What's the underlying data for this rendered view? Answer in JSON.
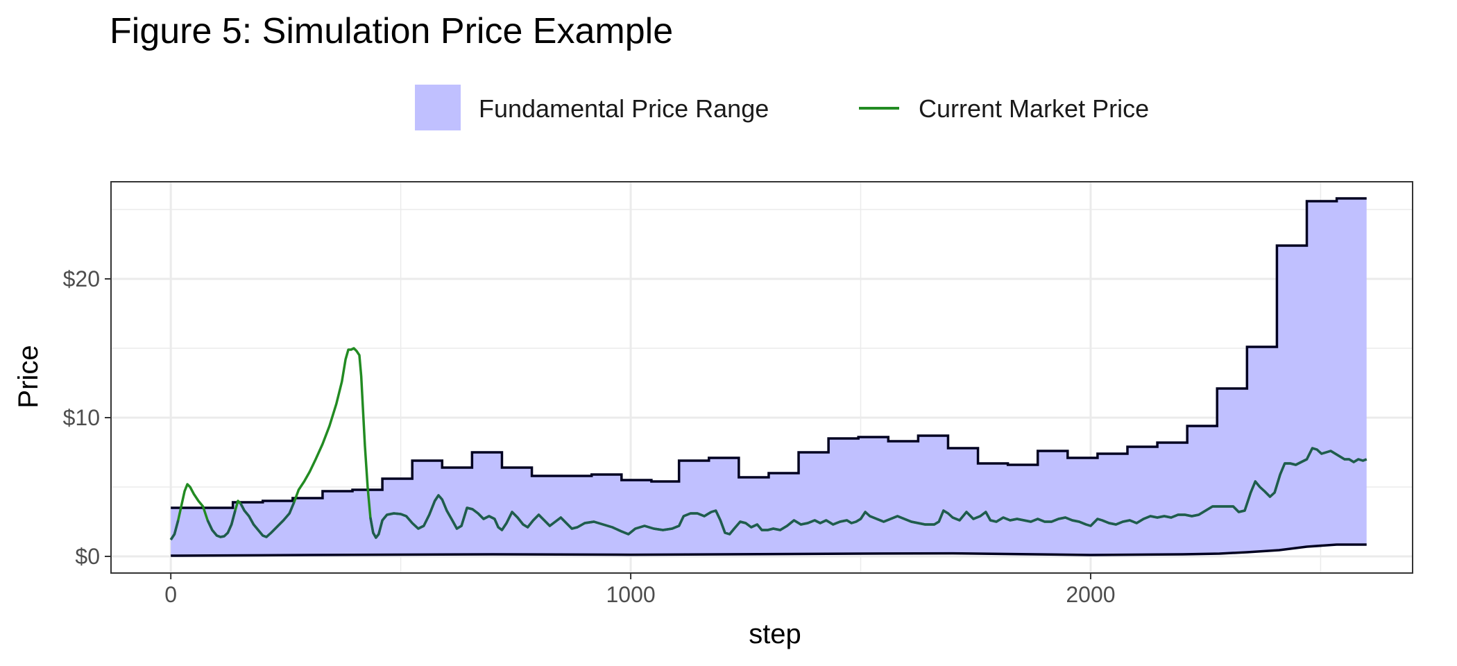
{
  "chart_data": {
    "type": "line",
    "title": "Figure 5: Simulation Price Example",
    "xlabel": "step",
    "ylabel": "Price",
    "xlim": [
      -130,
      2700
    ],
    "ylim": [
      -1.2,
      27
    ],
    "x_ticks": [
      {
        "value": 0,
        "label": "0"
      },
      {
        "value": 1000,
        "label": "1000"
      },
      {
        "value": 2000,
        "label": "2000"
      }
    ],
    "y_ticks": [
      {
        "value": 0,
        "label": "$0"
      },
      {
        "value": 10,
        "label": "$10"
      },
      {
        "value": 20,
        "label": "$20"
      }
    ],
    "x_minor": [
      500,
      1500,
      2500
    ],
    "y_minor": [
      5,
      15,
      25
    ],
    "grid": true,
    "legend": {
      "placement": "top",
      "entries": [
        {
          "label": "Fundamental Price Range",
          "kind": "fill"
        },
        {
          "label": "Current Market Price",
          "kind": "line"
        }
      ]
    },
    "colors": {
      "range_fill": "#c0c0ff",
      "range_edge": "#000020",
      "price_outside": "#228b22",
      "price_inside": "#1f5c4e",
      "grid": "#ebebeb",
      "panel_border": "#333333"
    },
    "fundamental_upper_steps": [
      [
        0,
        3.5
      ],
      [
        135,
        3.9
      ],
      [
        200,
        4.0
      ],
      [
        265,
        4.2
      ],
      [
        330,
        4.7
      ],
      [
        395,
        4.8
      ],
      [
        460,
        5.6
      ],
      [
        525,
        6.9
      ],
      [
        590,
        6.4
      ],
      [
        655,
        7.5
      ],
      [
        720,
        6.4
      ],
      [
        785,
        5.8
      ],
      [
        850,
        5.8
      ],
      [
        915,
        5.9
      ],
      [
        980,
        5.5
      ],
      [
        1045,
        5.4
      ],
      [
        1105,
        6.9
      ],
      [
        1170,
        7.1
      ],
      [
        1235,
        5.7
      ],
      [
        1300,
        6.0
      ],
      [
        1365,
        7.5
      ],
      [
        1430,
        8.5
      ],
      [
        1495,
        8.6
      ],
      [
        1560,
        8.3
      ],
      [
        1625,
        8.7
      ],
      [
        1690,
        7.8
      ],
      [
        1755,
        6.7
      ],
      [
        1820,
        6.6
      ],
      [
        1885,
        7.6
      ],
      [
        1950,
        7.1
      ],
      [
        2015,
        7.4
      ],
      [
        2080,
        7.9
      ],
      [
        2145,
        8.2
      ],
      [
        2210,
        9.4
      ],
      [
        2275,
        12.1
      ],
      [
        2340,
        15.1
      ],
      [
        2405,
        22.4
      ],
      [
        2470,
        25.6
      ],
      [
        2535,
        25.8
      ]
    ],
    "fundamental_upper_end": 2600,
    "fundamental_lower": [
      [
        0,
        0.05
      ],
      [
        300,
        0.1
      ],
      [
        700,
        0.15
      ],
      [
        1000,
        0.12
      ],
      [
        1500,
        0.2
      ],
      [
        1700,
        0.22
      ],
      [
        2000,
        0.1
      ],
      [
        2200,
        0.15
      ],
      [
        2280,
        0.2
      ],
      [
        2340,
        0.3
      ],
      [
        2410,
        0.45
      ],
      [
        2470,
        0.7
      ],
      [
        2535,
        0.85
      ],
      [
        2600,
        0.85
      ]
    ],
    "market_price": [
      [
        0,
        1.2
      ],
      [
        8,
        1.6
      ],
      [
        16,
        2.6
      ],
      [
        24,
        3.8
      ],
      [
        30,
        4.7
      ],
      [
        36,
        5.2
      ],
      [
        42,
        5.0
      ],
      [
        50,
        4.5
      ],
      [
        60,
        4.0
      ],
      [
        70,
        3.6
      ],
      [
        80,
        2.6
      ],
      [
        90,
        1.9
      ],
      [
        100,
        1.5
      ],
      [
        108,
        1.4
      ],
      [
        116,
        1.45
      ],
      [
        124,
        1.7
      ],
      [
        132,
        2.3
      ],
      [
        140,
        3.3
      ],
      [
        146,
        4.0
      ],
      [
        152,
        3.8
      ],
      [
        160,
        3.3
      ],
      [
        170,
        2.9
      ],
      [
        180,
        2.3
      ],
      [
        190,
        1.9
      ],
      [
        200,
        1.5
      ],
      [
        208,
        1.4
      ],
      [
        218,
        1.7
      ],
      [
        230,
        2.1
      ],
      [
        245,
        2.6
      ],
      [
        258,
        3.1
      ],
      [
        268,
        3.9
      ],
      [
        278,
        4.8
      ],
      [
        290,
        5.4
      ],
      [
        302,
        6.1
      ],
      [
        315,
        7.0
      ],
      [
        330,
        8.1
      ],
      [
        345,
        9.4
      ],
      [
        360,
        11.0
      ],
      [
        372,
        12.6
      ],
      [
        380,
        14.2
      ],
      [
        386,
        14.9
      ],
      [
        392,
        14.9
      ],
      [
        398,
        15.0
      ],
      [
        404,
        14.8
      ],
      [
        410,
        14.5
      ],
      [
        414,
        13.0
      ],
      [
        418,
        10.5
      ],
      [
        422,
        8.0
      ],
      [
        428,
        5.0
      ],
      [
        434,
        2.8
      ],
      [
        440,
        1.7
      ],
      [
        446,
        1.35
      ],
      [
        452,
        1.6
      ],
      [
        460,
        2.6
      ],
      [
        470,
        3.0
      ],
      [
        485,
        3.1
      ],
      [
        500,
        3.05
      ],
      [
        512,
        2.9
      ],
      [
        525,
        2.4
      ],
      [
        538,
        2.0
      ],
      [
        550,
        2.2
      ],
      [
        562,
        3.0
      ],
      [
        574,
        4.0
      ],
      [
        582,
        4.4
      ],
      [
        590,
        4.1
      ],
      [
        600,
        3.3
      ],
      [
        612,
        2.6
      ],
      [
        622,
        2.0
      ],
      [
        632,
        2.2
      ],
      [
        644,
        3.5
      ],
      [
        656,
        3.4
      ],
      [
        668,
        3.1
      ],
      [
        680,
        2.7
      ],
      [
        692,
        2.9
      ],
      [
        704,
        2.7
      ],
      [
        712,
        2.1
      ],
      [
        720,
        1.9
      ],
      [
        730,
        2.4
      ],
      [
        742,
        3.2
      ],
      [
        754,
        2.8
      ],
      [
        766,
        2.3
      ],
      [
        776,
        2.1
      ],
      [
        788,
        2.6
      ],
      [
        800,
        3.0
      ],
      [
        812,
        2.6
      ],
      [
        824,
        2.2
      ],
      [
        836,
        2.5
      ],
      [
        848,
        2.8
      ],
      [
        860,
        2.4
      ],
      [
        872,
        2.0
      ],
      [
        884,
        2.1
      ],
      [
        900,
        2.4
      ],
      [
        920,
        2.5
      ],
      [
        940,
        2.3
      ],
      [
        960,
        2.1
      ],
      [
        980,
        1.8
      ],
      [
        995,
        1.6
      ],
      [
        1010,
        2.0
      ],
      [
        1030,
        2.2
      ],
      [
        1050,
        2.0
      ],
      [
        1070,
        1.9
      ],
      [
        1090,
        2.0
      ],
      [
        1105,
        2.2
      ],
      [
        1115,
        2.9
      ],
      [
        1130,
        3.1
      ],
      [
        1145,
        3.1
      ],
      [
        1160,
        2.9
      ],
      [
        1175,
        3.2
      ],
      [
        1185,
        3.3
      ],
      [
        1195,
        2.6
      ],
      [
        1205,
        1.7
      ],
      [
        1215,
        1.6
      ],
      [
        1225,
        2.0
      ],
      [
        1238,
        2.5
      ],
      [
        1250,
        2.4
      ],
      [
        1262,
        2.1
      ],
      [
        1275,
        2.3
      ],
      [
        1285,
        1.9
      ],
      [
        1298,
        1.9
      ],
      [
        1310,
        2.0
      ],
      [
        1325,
        1.9
      ],
      [
        1340,
        2.2
      ],
      [
        1355,
        2.6
      ],
      [
        1370,
        2.3
      ],
      [
        1385,
        2.4
      ],
      [
        1400,
        2.6
      ],
      [
        1412,
        2.4
      ],
      [
        1425,
        2.6
      ],
      [
        1440,
        2.3
      ],
      [
        1455,
        2.5
      ],
      [
        1470,
        2.6
      ],
      [
        1480,
        2.4
      ],
      [
        1490,
        2.5
      ],
      [
        1500,
        2.7
      ],
      [
        1510,
        3.2
      ],
      [
        1520,
        2.9
      ],
      [
        1535,
        2.7
      ],
      [
        1550,
        2.5
      ],
      [
        1565,
        2.7
      ],
      [
        1580,
        2.9
      ],
      [
        1595,
        2.7
      ],
      [
        1610,
        2.5
      ],
      [
        1625,
        2.4
      ],
      [
        1640,
        2.3
      ],
      [
        1660,
        2.3
      ],
      [
        1670,
        2.5
      ],
      [
        1680,
        3.3
      ],
      [
        1690,
        3.1
      ],
      [
        1700,
        2.8
      ],
      [
        1715,
        2.6
      ],
      [
        1730,
        3.2
      ],
      [
        1745,
        2.7
      ],
      [
        1760,
        2.9
      ],
      [
        1772,
        3.2
      ],
      [
        1782,
        2.6
      ],
      [
        1795,
        2.5
      ],
      [
        1810,
        2.8
      ],
      [
        1825,
        2.6
      ],
      [
        1840,
        2.7
      ],
      [
        1855,
        2.6
      ],
      [
        1870,
        2.5
      ],
      [
        1885,
        2.7
      ],
      [
        1900,
        2.5
      ],
      [
        1915,
        2.5
      ],
      [
        1930,
        2.7
      ],
      [
        1945,
        2.8
      ],
      [
        1960,
        2.6
      ],
      [
        1975,
        2.5
      ],
      [
        1990,
        2.3
      ],
      [
        2000,
        2.2
      ],
      [
        2015,
        2.7
      ],
      [
        2025,
        2.6
      ],
      [
        2040,
        2.4
      ],
      [
        2055,
        2.3
      ],
      [
        2070,
        2.5
      ],
      [
        2085,
        2.6
      ],
      [
        2100,
        2.4
      ],
      [
        2115,
        2.7
      ],
      [
        2130,
        2.9
      ],
      [
        2145,
        2.8
      ],
      [
        2160,
        2.9
      ],
      [
        2175,
        2.8
      ],
      [
        2190,
        3.0
      ],
      [
        2205,
        3.0
      ],
      [
        2220,
        2.9
      ],
      [
        2235,
        3.0
      ],
      [
        2250,
        3.3
      ],
      [
        2265,
        3.6
      ],
      [
        2280,
        3.6
      ],
      [
        2295,
        3.6
      ],
      [
        2310,
        3.6
      ],
      [
        2322,
        3.2
      ],
      [
        2335,
        3.3
      ],
      [
        2348,
        4.6
      ],
      [
        2358,
        5.4
      ],
      [
        2368,
        5.0
      ],
      [
        2378,
        4.7
      ],
      [
        2390,
        4.3
      ],
      [
        2400,
        4.6
      ],
      [
        2412,
        5.9
      ],
      [
        2422,
        6.7
      ],
      [
        2434,
        6.7
      ],
      [
        2446,
        6.6
      ],
      [
        2458,
        6.8
      ],
      [
        2470,
        7.0
      ],
      [
        2482,
        7.8
      ],
      [
        2492,
        7.7
      ],
      [
        2502,
        7.4
      ],
      [
        2512,
        7.5
      ],
      [
        2522,
        7.6
      ],
      [
        2532,
        7.4
      ],
      [
        2542,
        7.2
      ],
      [
        2552,
        7.0
      ],
      [
        2562,
        7.0
      ],
      [
        2572,
        6.8
      ],
      [
        2582,
        7.0
      ],
      [
        2592,
        6.9
      ],
      [
        2600,
        7.0
      ]
    ]
  }
}
